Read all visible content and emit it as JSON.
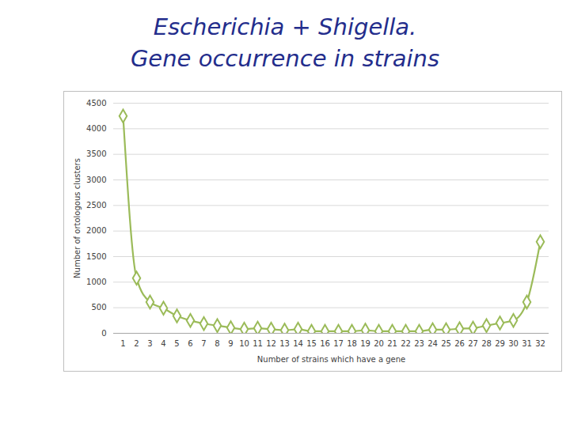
{
  "chart_data": {
    "type": "line",
    "title": "Escherichia + Shigella.\nGene occurrence in strains",
    "x_label": "Number of strains which have a gene",
    "y_label": "Number of ortologous clusters",
    "categories": [
      "1",
      "2",
      "3",
      "4",
      "5",
      "6",
      "7",
      "8",
      "9",
      "10",
      "11",
      "12",
      "13",
      "14",
      "15",
      "16",
      "17",
      "18",
      "19",
      "20",
      "21",
      "22",
      "23",
      "24",
      "25",
      "26",
      "27",
      "28",
      "29",
      "30",
      "31",
      "32"
    ],
    "values": [
      4250,
      1080,
      610,
      490,
      340,
      250,
      190,
      150,
      110,
      80,
      100,
      80,
      60,
      80,
      40,
      40,
      40,
      40,
      60,
      40,
      40,
      40,
      40,
      70,
      70,
      90,
      100,
      150,
      200,
      250,
      610,
      1790
    ],
    "color": "#9bbb59",
    "marker": "diamond",
    "line_style": "solid",
    "ylim": [
      0,
      4500
    ],
    "yticks": [
      0,
      500,
      1000,
      1500,
      2000,
      2500,
      3000,
      3500,
      4000,
      4500
    ],
    "grid": true
  }
}
